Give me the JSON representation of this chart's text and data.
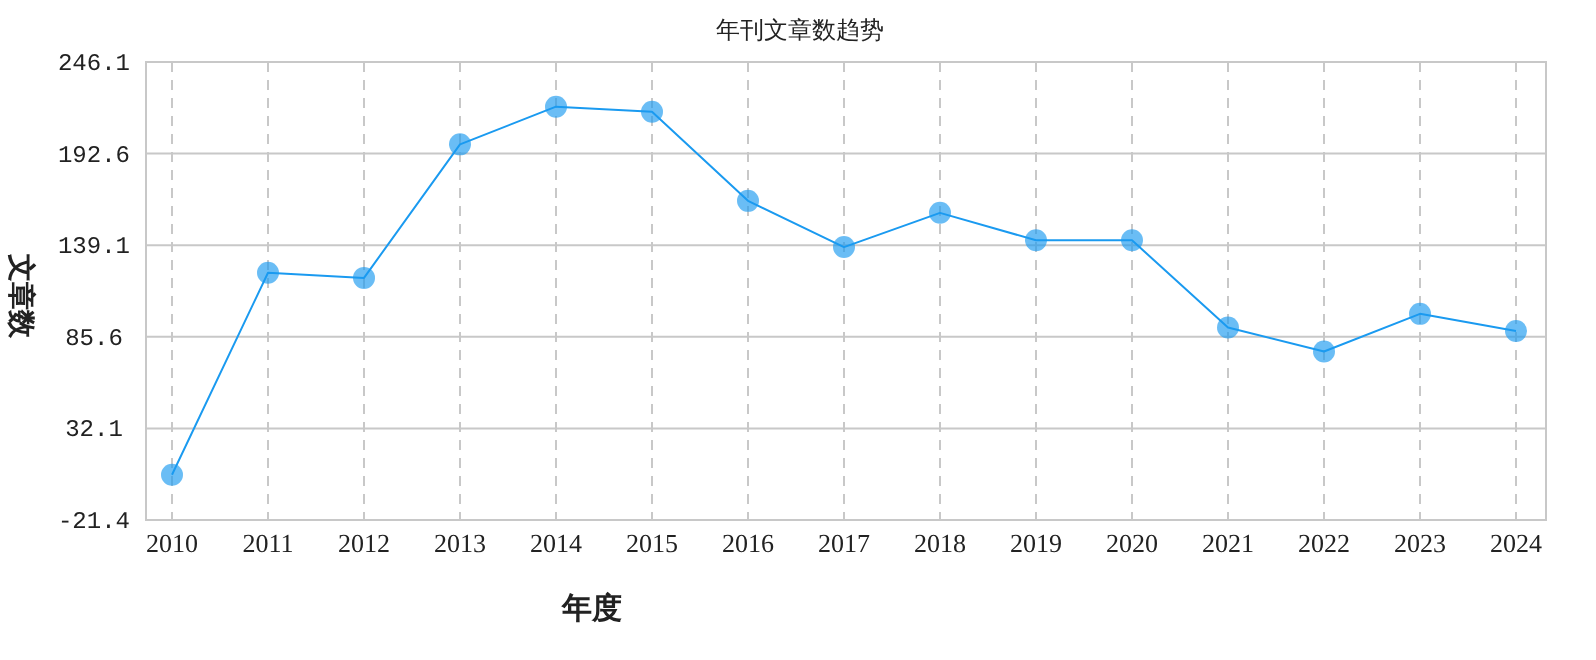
{
  "chart_data": {
    "type": "line",
    "title": "年刊文章数趋势",
    "xlabel": "年度",
    "ylabel": "文章数",
    "categories": [
      "2010",
      "2011",
      "2012",
      "2013",
      "2014",
      "2015",
      "2016",
      "2017",
      "2018",
      "2019",
      "2020",
      "2021",
      "2022",
      "2023",
      "2024"
    ],
    "series": [
      {
        "color": "#1a9af0",
        "values": [
          5,
          123,
          120,
          198,
          220,
          217,
          165,
          138,
          158,
          142,
          142,
          91,
          77,
          99,
          89
        ]
      }
    ],
    "ylim": [
      -21.4,
      246.1
    ],
    "yticks": [
      -21.4,
      32.1,
      85.6,
      139.1,
      192.6,
      246.1
    ],
    "grid": true,
    "marker": "circle",
    "line_style": "solid"
  }
}
